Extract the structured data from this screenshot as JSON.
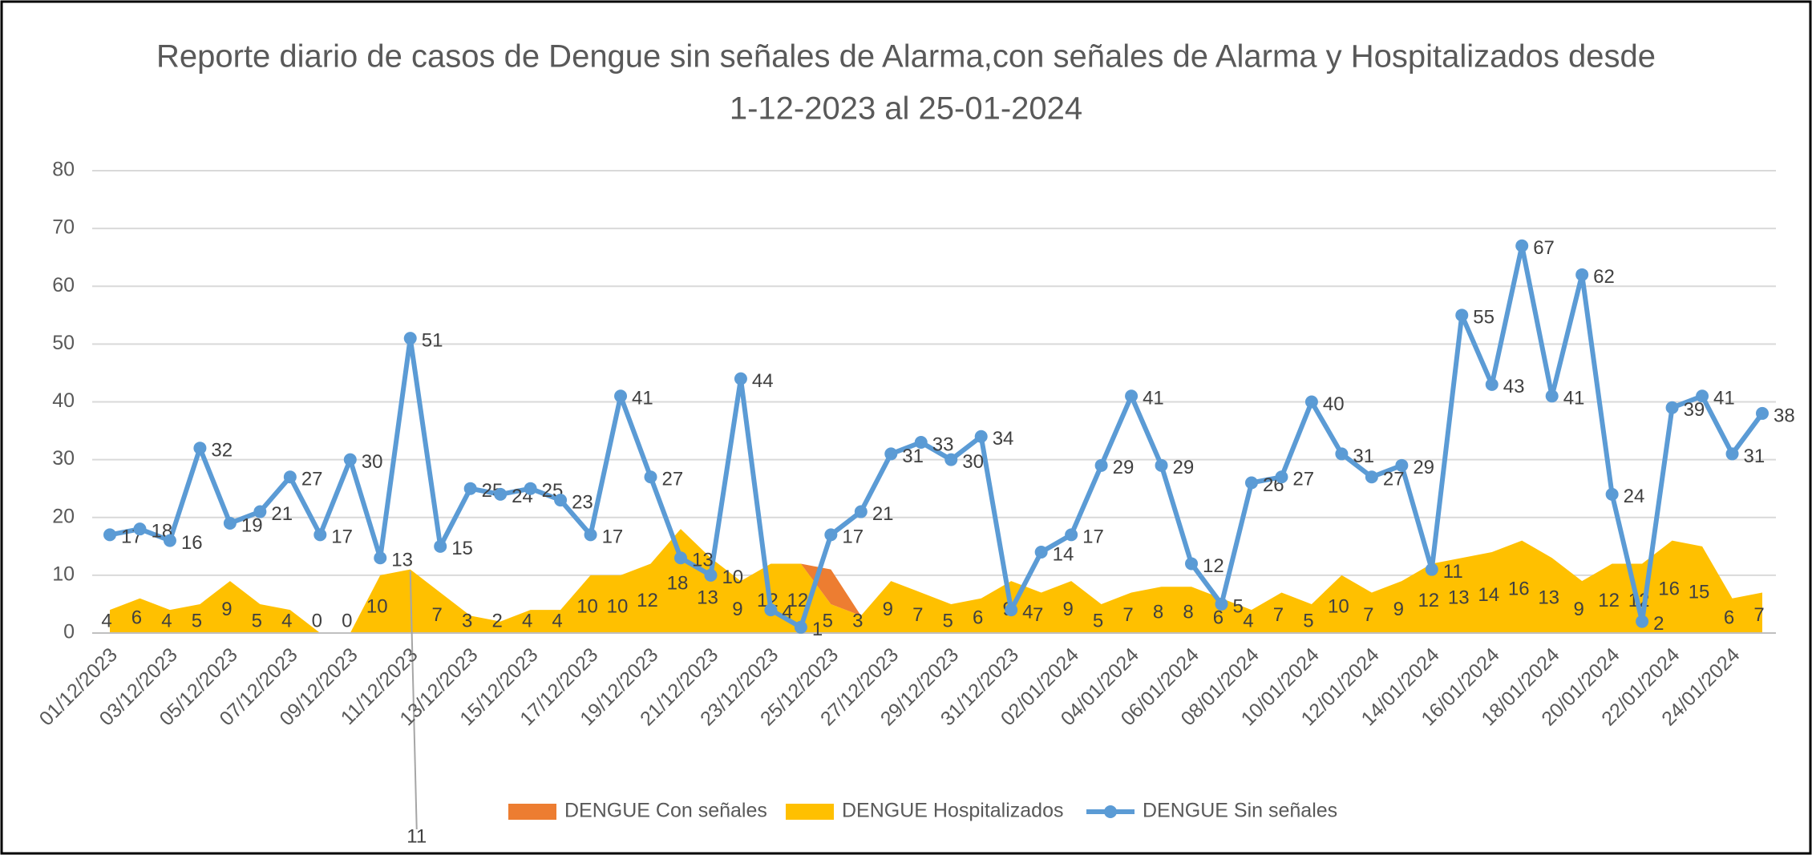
{
  "chart_data": {
    "type": "line_area",
    "title": "Reporte diario de casos de Dengue sin señales de Alarma,con señales de Alarma y Hospitalizados desde",
    "subtitle": "1-12-2023 al 25-01-2024",
    "categories": [
      "01/12/2023",
      null,
      "03/12/2023",
      null,
      "05/12/2023",
      null,
      "07/12/2023",
      null,
      "09/12/2023",
      null,
      "11/12/2023",
      null,
      "13/12/2023",
      null,
      "15/12/2023",
      null,
      "17/12/2023",
      null,
      "19/12/2023",
      null,
      "21/12/2023",
      null,
      "23/12/2023",
      null,
      "25/12/2023",
      null,
      "27/12/2023",
      null,
      "29/12/2023",
      null,
      "31/12/2023",
      null,
      "02/01/2024",
      null,
      "04/01/2024",
      null,
      "06/01/2024",
      null,
      "08/01/2024",
      null,
      "10/01/2024",
      null,
      "12/01/2024",
      null,
      "14/01/2024",
      null,
      "16/01/2024",
      null,
      "18/01/2024",
      null,
      "20/01/2024",
      null,
      "22/01/2024",
      null,
      "24/01/2024",
      null
    ],
    "series": [
      {
        "name": "DENGUE Con señales",
        "color": "#ed7d31",
        "kind": "area",
        "values": [
          0,
          0,
          0,
          0,
          0,
          0,
          0,
          0,
          0,
          0,
          0,
          0,
          0,
          0,
          0,
          0,
          0,
          0,
          0,
          0,
          0,
          0,
          0,
          0,
          6,
          0,
          0,
          0,
          0,
          0,
          0,
          0,
          0,
          0,
          0,
          0,
          0,
          0,
          0,
          0,
          0,
          0,
          0,
          0,
          0,
          0,
          0,
          0,
          0,
          0,
          0,
          0,
          0,
          0,
          0,
          0
        ]
      },
      {
        "name": "DENGUE Hospitalizados",
        "color": "#ffc000",
        "kind": "area",
        "values": [
          4,
          6,
          4,
          5,
          9,
          5,
          4,
          0,
          0,
          10,
          11,
          7,
          3,
          2,
          4,
          4,
          10,
          10,
          12,
          18,
          13,
          9,
          12,
          12,
          5,
          3,
          9,
          7,
          5,
          6,
          9,
          7,
          9,
          5,
          7,
          8,
          8,
          6,
          4,
          7,
          5,
          10,
          7,
          9,
          12,
          13,
          14,
          16,
          13,
          9,
          12,
          12,
          16,
          15,
          6,
          7
        ]
      },
      {
        "name": "DENGUE Sin señales",
        "color": "#5b9bd5",
        "kind": "line",
        "values": [
          17,
          18,
          16,
          32,
          19,
          21,
          27,
          17,
          30,
          13,
          51,
          15,
          25,
          24,
          25,
          23,
          17,
          41,
          27,
          13,
          10,
          44,
          4,
          1,
          17,
          21,
          31,
          33,
          30,
          34,
          4,
          14,
          17,
          29,
          41,
          29,
          12,
          5,
          26,
          27,
          40,
          31,
          27,
          29,
          11,
          55,
          43,
          67,
          41,
          62,
          24,
          2,
          39,
          41,
          31,
          38
        ]
      }
    ],
    "ylim": [
      0,
      80
    ],
    "yticks": [
      0,
      10,
      20,
      30,
      40,
      50,
      60,
      70,
      80
    ],
    "grid": true,
    "legend": "bottom"
  }
}
